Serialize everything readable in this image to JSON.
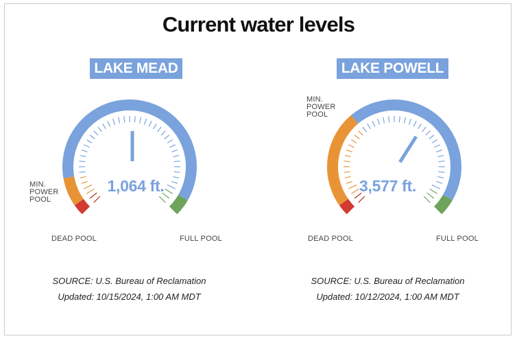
{
  "title": "Current water levels",
  "colors": {
    "blue": "#7aa2dc",
    "orange": "#e89336",
    "red": "#d23a32",
    "green": "#6da35b",
    "tick_dark_red": "#b02a1a"
  },
  "gauges": [
    {
      "lake": "LAKE MEAD",
      "reading": "1,064 ft.",
      "needle_fraction": 0.5,
      "min_power_pool_label": "MIN.\nPOWER\nPOOL",
      "dead_pool_label": "DEAD POOL",
      "full_pool_label": "FULL POOL",
      "source": "SOURCE: U.S. Bureau of Reclamation",
      "updated": "Updated: 10/15/2024, 1:00 AM MDT"
    },
    {
      "lake": "LAKE POWELL",
      "reading": "3,577 ft.",
      "needle_fraction": 0.62,
      "min_power_pool_label": "MIN.\nPOWER\nPOOL",
      "dead_pool_label": "DEAD POOL",
      "full_pool_label": "FULL POOL",
      "source": "SOURCE: U.S. Bureau of Reclamation",
      "updated": "Updated: 10/12/2024, 1:00 AM MDT"
    }
  ]
}
